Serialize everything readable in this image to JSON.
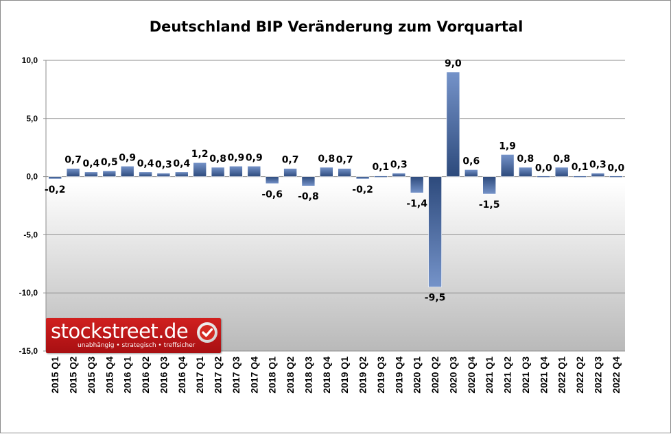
{
  "chart_data": {
    "type": "bar",
    "title": "Deutschland BIP Veränderung zum Vorquartal",
    "categories": [
      "2015 Q1",
      "2015 Q2",
      "2015 Q3",
      "2015 Q4",
      "2016 Q1",
      "2016 Q2",
      "2016 Q3",
      "2016 Q4",
      "2017 Q1",
      "2017 Q2",
      "2017 Q3",
      "2017 Q4",
      "2018 Q1",
      "2018 Q2",
      "2018 Q3",
      "2018 Q4",
      "2019 Q1",
      "2019 Q2",
      "2019 Q3",
      "2019 Q4",
      "2020 Q1",
      "2020 Q2",
      "2020 Q3",
      "2020 Q4",
      "2021 Q1",
      "2021 Q2",
      "2021 Q3",
      "2021 Q4",
      "2022 Q1",
      "2022 Q2",
      "2022 Q3",
      "2022 Q4"
    ],
    "values": [
      -0.2,
      0.7,
      0.4,
      0.5,
      0.9,
      0.4,
      0.3,
      0.4,
      1.2,
      0.8,
      0.9,
      0.9,
      -0.6,
      0.7,
      -0.8,
      0.8,
      0.7,
      -0.2,
      0.1,
      0.3,
      -1.4,
      -9.5,
      9.0,
      0.6,
      -1.5,
      1.9,
      0.8,
      0.0,
      0.8,
      0.1,
      0.3,
      0.0
    ],
    "data_labels": [
      "-0,2",
      "0,7",
      "0,4",
      "0,5",
      "0,9",
      "0,4",
      "0,3",
      "0,4",
      "1,2",
      "0,8",
      "0,9",
      "0,9",
      "-0,6",
      "0,7",
      "-0,8",
      "0,8",
      "0,7",
      "-0,2",
      "0,1",
      "0,3",
      "-1,4",
      "-9,5",
      "9,0",
      "0,6",
      "-1,5",
      "1,9",
      "0,8",
      "0,0",
      "0,8",
      "0,1",
      "0,3",
      "0,0"
    ],
    "ylim": [
      -15,
      10
    ],
    "yticks": [
      10,
      5,
      0,
      -5,
      -10,
      -15
    ],
    "ytick_labels": [
      "10,0",
      "5,0",
      "0,0",
      "-5,0",
      "-10,0",
      "-15,0"
    ],
    "grid": true,
    "xlabel": "",
    "ylabel": "",
    "colors": {
      "bar_light": "#6f8fc6",
      "bar_dark": "#2b4778",
      "grid": "#8c8c8c"
    }
  },
  "logo": {
    "name": "stockstreet.de",
    "slogan": "unabhängig • strategisch • treffsicher",
    "check_icon": "check-icon",
    "color": "#c0161a"
  }
}
